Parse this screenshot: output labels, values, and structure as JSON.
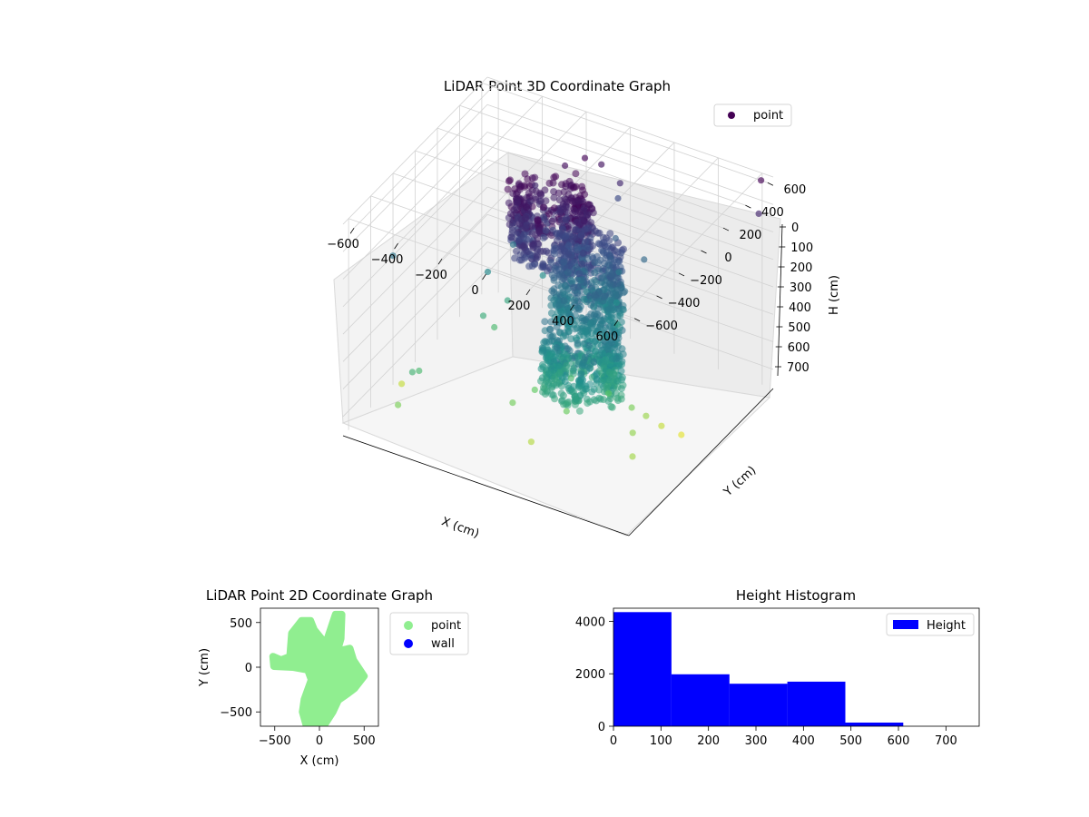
{
  "chart_data": [
    {
      "type": "scatter",
      "subtype": "3d",
      "title": "LiDAR Point 3D Coordinate Graph",
      "xlabel": "X (cm)",
      "ylabel": "Y (cm)",
      "zlabel": "H (cm)",
      "x_ticks": [
        "−600",
        "−400",
        "−200",
        "0",
        "200",
        "400",
        "600"
      ],
      "y_ticks": [
        "−600",
        "−400",
        "−200",
        "0",
        "200",
        "400",
        "600"
      ],
      "z_ticks": [
        "0",
        "100",
        "200",
        "300",
        "400",
        "500",
        "600",
        "700"
      ],
      "xlim": [
        -650,
        650
      ],
      "ylim": [
        -650,
        650
      ],
      "zlim": [
        0,
        770
      ],
      "z_inverted": true,
      "grid": true,
      "colormap": "viridis",
      "legend": {
        "position": "top-right",
        "entries": [
          {
            "label": "point",
            "color": "#440154"
          }
        ]
      },
      "series": [
        {
          "name": "point",
          "points": [
            [
              -650,
              -200,
              300
            ],
            [
              -380,
              -560,
              500
            ],
            [
              -380,
              -500,
              520
            ],
            [
              -420,
              -610,
              610
            ],
            [
              -300,
              -80,
              470
            ],
            [
              -270,
              -40,
              520
            ],
            [
              -250,
              40,
              450
            ],
            [
              -150,
              160,
              380
            ],
            [
              -210,
              210,
              90
            ],
            [
              -120,
              300,
              30
            ],
            [
              -60,
              360,
              10
            ],
            [
              -10,
              410,
              40
            ],
            [
              70,
              420,
              90
            ],
            [
              40,
              460,
              170
            ],
            [
              110,
              300,
              230
            ],
            [
              160,
              230,
              310
            ],
            [
              190,
              150,
              380
            ],
            [
              230,
              80,
              420
            ],
            [
              -30,
              -350,
              600
            ],
            [
              20,
              -250,
              580
            ],
            [
              160,
              -200,
              520
            ],
            [
              190,
              -300,
              590
            ],
            [
              300,
              -140,
              560
            ],
            [
              380,
              -90,
              610
            ],
            [
              420,
              -40,
              650
            ],
            [
              460,
              20,
              700
            ],
            [
              520,
              80,
              740
            ],
            [
              440,
              -200,
              640
            ],
            [
              500,
              -320,
              660
            ],
            [
              620,
              600,
              0
            ],
            [
              650,
              520,
              80
            ],
            [
              -560,
              -300,
              700
            ],
            [
              -280,
              150,
              300
            ],
            [
              -330,
              20,
              360
            ],
            [
              90,
              -420,
              680
            ],
            [
              250,
              280,
              260
            ]
          ]
        }
      ],
      "dense_clusters": [
        {
          "center": [
            -60,
            50
          ],
          "radius": 180,
          "h_range": [
            0,
            230
          ]
        },
        {
          "center": [
            170,
            -120
          ],
          "radius": 170,
          "h_range": [
            370,
            600
          ]
        },
        {
          "center": [
            70,
            130
          ],
          "radius": 150,
          "h_range": [
            180,
            470
          ]
        }
      ]
    },
    {
      "type": "scatter",
      "title": "LiDAR Point 2D Coordinate Graph",
      "xlabel": "X (cm)",
      "ylabel": "Y (cm)",
      "x_ticks": [
        -500,
        0,
        500
      ],
      "y_ticks": [
        -500,
        0,
        500
      ],
      "xlim": [
        -660,
        660
      ],
      "ylim": [
        -660,
        660
      ],
      "legend": {
        "position": "outside-right",
        "entries": [
          {
            "label": "point",
            "color": "#90ee90"
          },
          {
            "label": "wall",
            "color": "#0000ff"
          }
        ]
      },
      "series": [
        {
          "name": "point",
          "color": "#90ee90",
          "polygon": [
            [
              -520,
              120
            ],
            [
              -430,
              80
            ],
            [
              -330,
              120
            ],
            [
              -310,
              380
            ],
            [
              -200,
              520
            ],
            [
              -100,
              520
            ],
            [
              -60,
              420
            ],
            [
              70,
              260
            ],
            [
              180,
              590
            ],
            [
              250,
              590
            ],
            [
              240,
              320
            ],
            [
              200,
              180
            ],
            [
              340,
              210
            ],
            [
              380,
              80
            ],
            [
              500,
              -100
            ],
            [
              390,
              -240
            ],
            [
              310,
              -300
            ],
            [
              210,
              -370
            ],
            [
              150,
              -500
            ],
            [
              60,
              -640
            ],
            [
              -150,
              -640
            ],
            [
              -190,
              -500
            ],
            [
              -170,
              -360
            ],
            [
              -90,
              -140
            ],
            [
              -130,
              -30
            ],
            [
              -300,
              0
            ],
            [
              -510,
              10
            ]
          ]
        },
        {
          "name": "wall",
          "color": "#0000ff",
          "points": []
        }
      ]
    },
    {
      "type": "bar",
      "subtype": "histogram",
      "title": "Height Histogram",
      "x_ticks": [
        0,
        100,
        200,
        300,
        400,
        500,
        600,
        700
      ],
      "y_ticks": [
        0,
        2000,
        4000
      ],
      "xlim": [
        0,
        770
      ],
      "ylim": [
        0,
        4500
      ],
      "bin_edges": [
        0,
        122,
        244,
        366,
        488,
        610,
        732
      ],
      "series": [
        {
          "name": "Height",
          "color": "#0000ff",
          "values": [
            4350,
            1980,
            1620,
            1700,
            140,
            0
          ]
        }
      ],
      "legend": {
        "position": "top-right",
        "entries": [
          {
            "label": "Height",
            "color": "#0000ff"
          }
        ]
      }
    }
  ]
}
